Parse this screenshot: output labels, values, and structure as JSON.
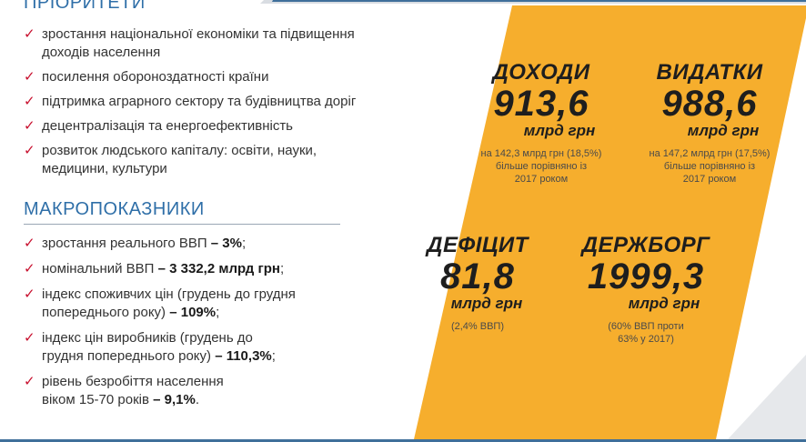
{
  "priorities": {
    "title": "ПРІОРИТЕТИ",
    "items": [
      {
        "lines": [
          "зростання національної економіки та підвищення",
          "доходів населення"
        ]
      },
      {
        "lines": [
          "посилення обороноздатності країни"
        ]
      },
      {
        "lines": [
          "підтримка аграрного сектору та  будівництва доріг"
        ]
      },
      {
        "lines": [
          "децентралізація та енергоефективність"
        ]
      },
      {
        "lines": [
          "розвиток людського капіталу: освіти, науки,",
          "медицини, культури"
        ]
      }
    ]
  },
  "macro": {
    "title": "МАКРОПОКАЗНИКИ",
    "items": [
      {
        "l1": "зростання реального ВВП ",
        "b1": "– 3%",
        "t1": ";",
        "l2": "",
        "b2": "",
        "t2": ""
      },
      {
        "l1": "номінальний ВВП ",
        "b1": "– 3 332,2 млрд грн",
        "t1": ";",
        "l2": "",
        "b2": "",
        "t2": ""
      },
      {
        "l1": "індекс споживчих цін (грудень до грудня",
        "b1": "",
        "t1": "",
        "l2": "попереднього року) ",
        "b2": "– 109%",
        "t2": ";"
      },
      {
        "l1": "індекс цін виробників (грудень до",
        "b1": "",
        "t1": "",
        "l2": "грудня попереднього року) ",
        "b2": "– 110,3%",
        "t2": ";"
      },
      {
        "l1": "рівень безробіття населення",
        "b1": "",
        "t1": "",
        "l2": "віком 15-70 років ",
        "b2": "– 9,1%",
        "t2": "."
      }
    ]
  },
  "stats": {
    "revenue": {
      "label": "ДОХОДИ",
      "value": "913,6",
      "unit": "млрд грн",
      "note": [
        "на 142,3 млрд грн (18,5%)",
        "більше порівняно із",
        "2017 роком"
      ]
    },
    "expenses": {
      "label": "ВИДАТКИ",
      "value": "988,6",
      "unit": "млрд грн",
      "note": [
        "на 147,2 млрд грн (17,5%)",
        "більше порівняно із",
        "2017 роком"
      ]
    },
    "deficit": {
      "label": "ДЕФІЦИТ",
      "value": "81,8",
      "unit": "млрд грн",
      "note": [
        "(2,4% ВВП)"
      ]
    },
    "debt": {
      "label": "ДЕРЖБОРГ",
      "value": "1999,3",
      "unit": "млрд грн",
      "note": [
        "(60% ВВП проти",
        "63% у 2017)"
      ]
    }
  },
  "colors": {
    "accent": "#f6ae2d",
    "title": "#2f6fa8",
    "check": "#c8102e",
    "navy": "#3f6f9a"
  }
}
